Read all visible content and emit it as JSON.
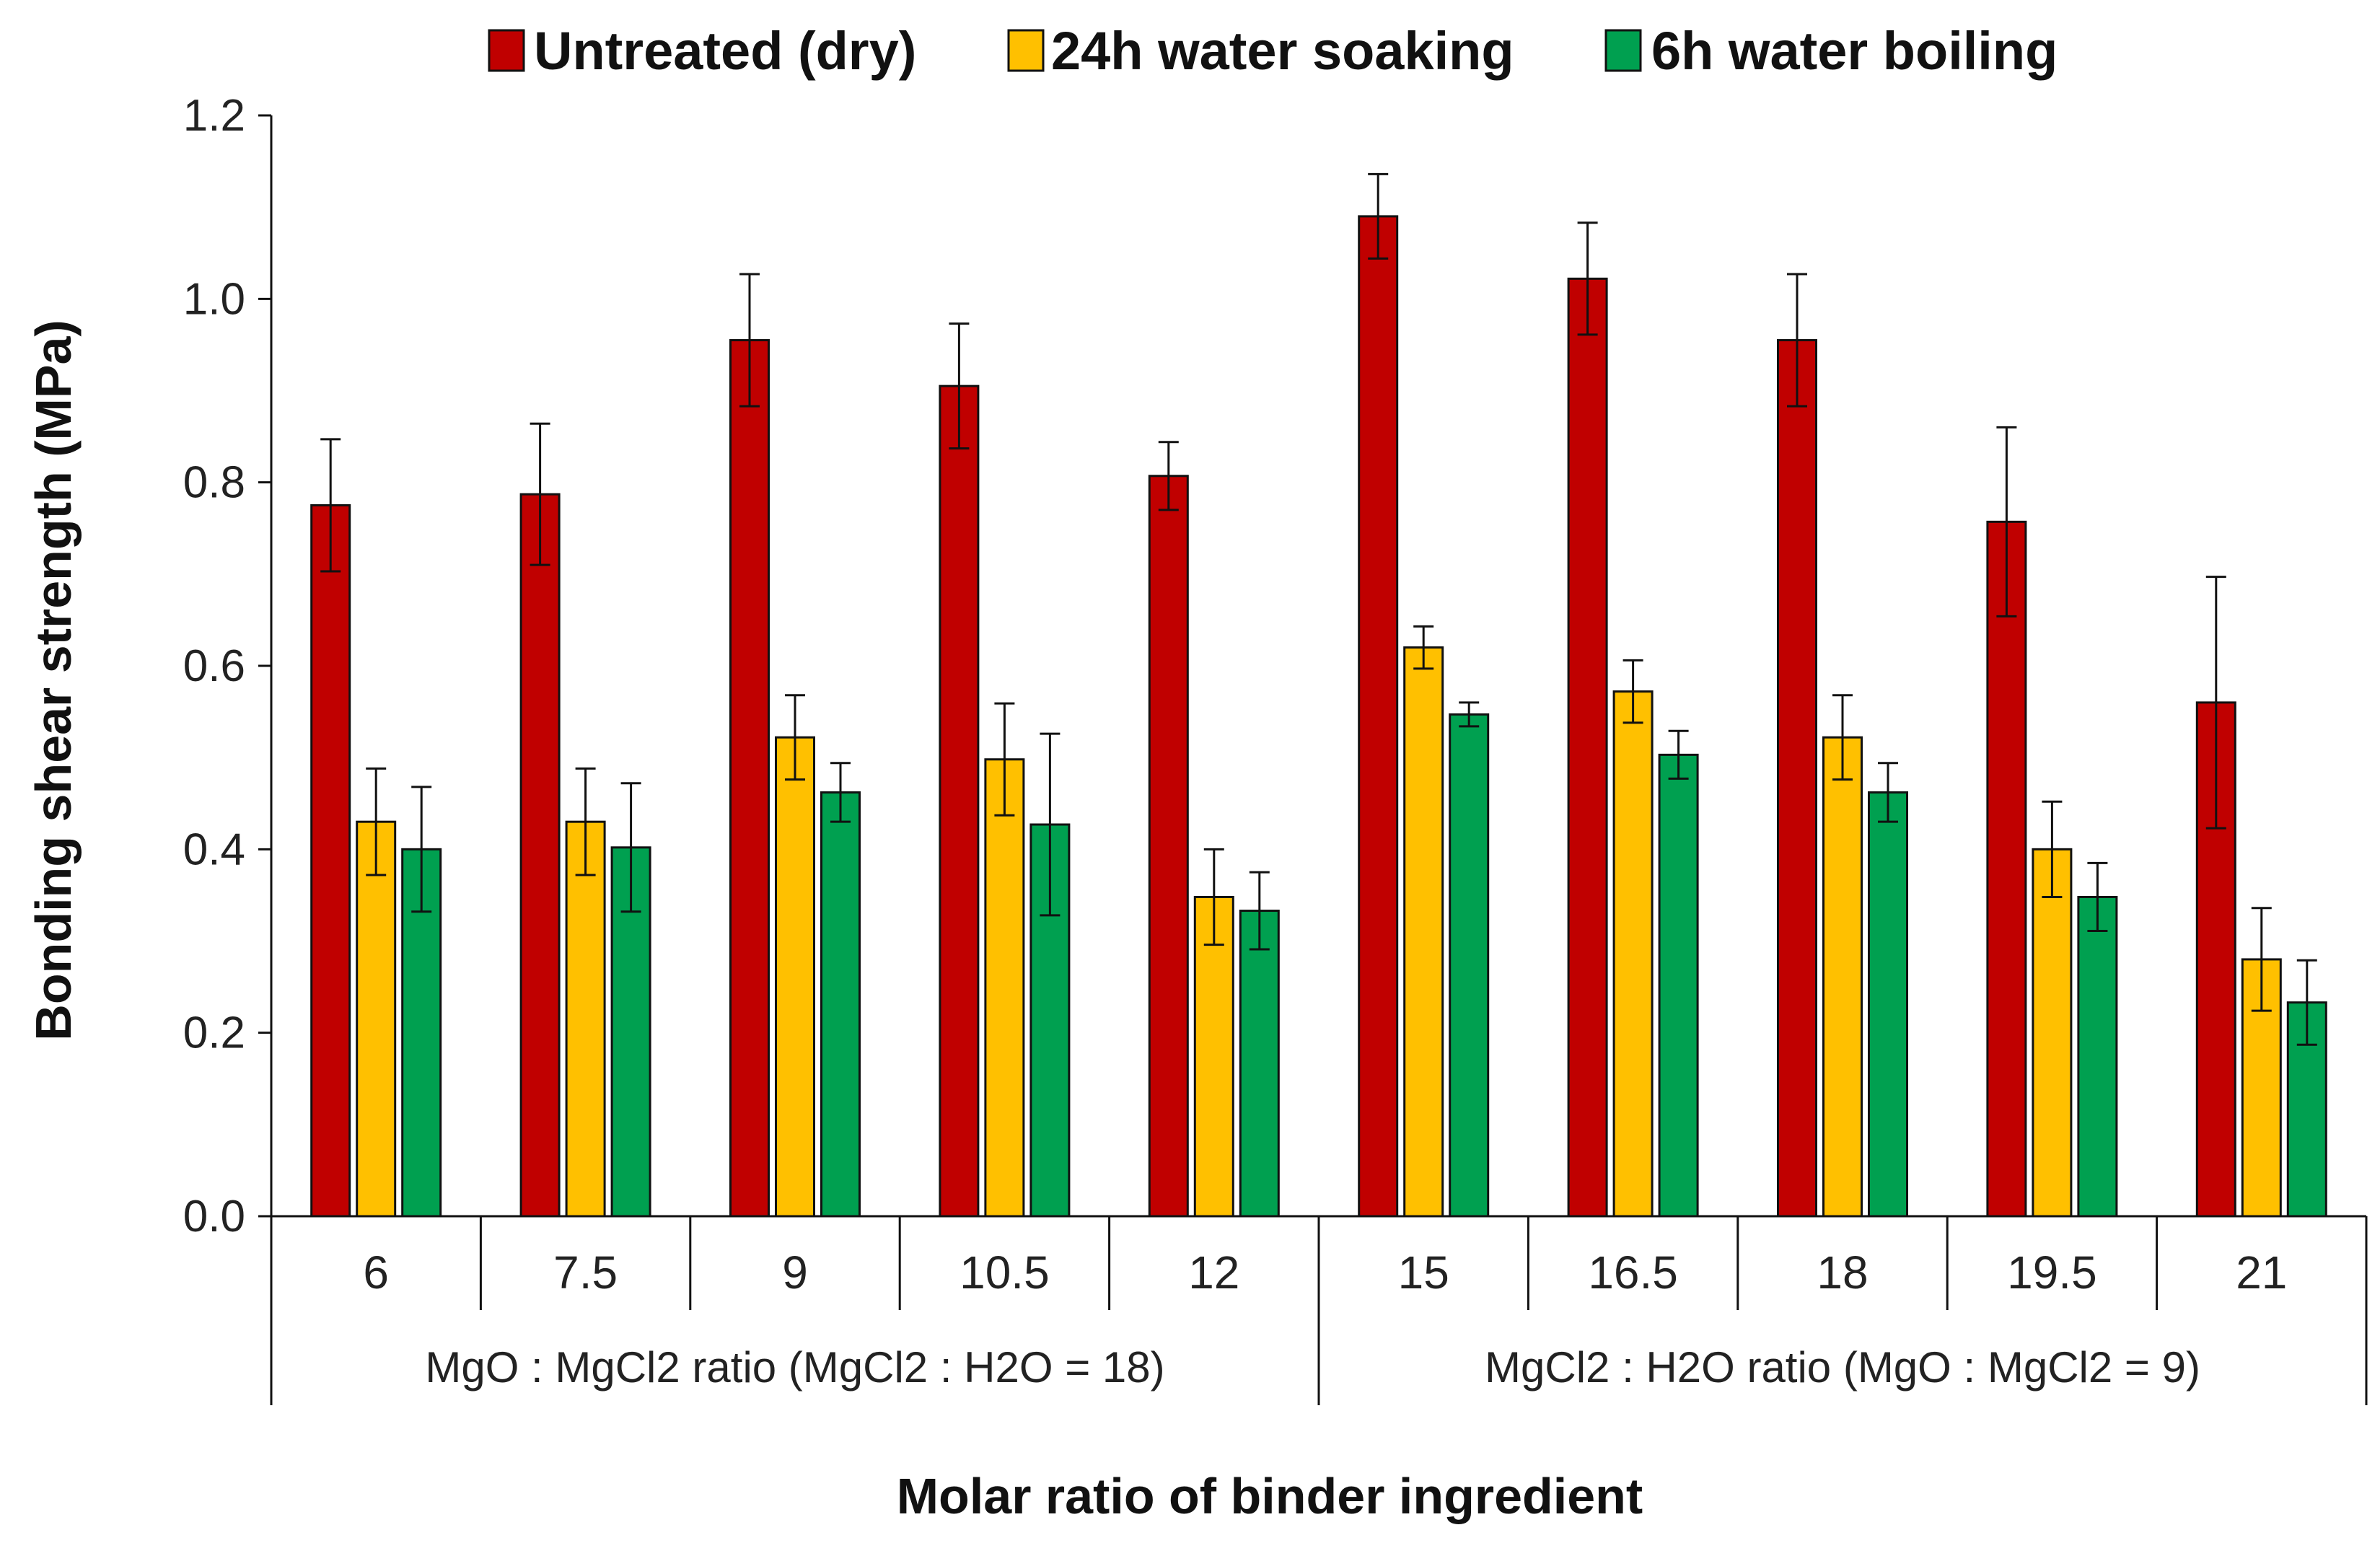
{
  "chart_data": {
    "type": "bar",
    "title": "",
    "ylabel": "Bonding shear strength (MPa)",
    "xlabel": "Molar ratio of binder ingredient",
    "ylim": [
      0,
      1.2
    ],
    "yticks": [
      "0.0",
      "0.2",
      "0.4",
      "0.6",
      "0.8",
      "1.0",
      "1.2"
    ],
    "ytick_values": [
      0,
      0.2,
      0.4,
      0.6,
      0.8,
      1.0,
      1.2
    ],
    "categories": [
      "6",
      "7.5",
      "9",
      "10.5",
      "12",
      "15",
      "16.5",
      "18",
      "19.5",
      "21"
    ],
    "groups": [
      {
        "label": "MgO : MgCl2 ratio (MgCl2 : H2O = 18)",
        "categories": [
          "6",
          "7.5",
          "9",
          "10.5",
          "12"
        ]
      },
      {
        "label": "MgCl2 : H2O ratio (MgO : MgCl2 = 9)",
        "categories": [
          "15",
          "16.5",
          "18",
          "19.5",
          "21"
        ]
      }
    ],
    "legend_position": "top",
    "grid": false,
    "series": [
      {
        "name": "Untreated (dry)",
        "color": "#c00000",
        "values": [
          0.775,
          0.787,
          0.955,
          0.905,
          0.807,
          1.09,
          1.022,
          0.955,
          0.757,
          0.56
        ],
        "errors": [
          0.072,
          0.077,
          0.072,
          0.068,
          0.037,
          0.046,
          0.061,
          0.072,
          0.103,
          0.137
        ]
      },
      {
        "name": "24h water soaking",
        "color": "#ffc000",
        "values": [
          0.43,
          0.43,
          0.522,
          0.498,
          0.348,
          0.62,
          0.572,
          0.522,
          0.4,
          0.28
        ],
        "errors": [
          0.058,
          0.058,
          0.046,
          0.061,
          0.052,
          0.023,
          0.034,
          0.046,
          0.052,
          0.056
        ]
      },
      {
        "name": "6h water boiling",
        "color": "#00a050",
        "values": [
          0.4,
          0.402,
          0.462,
          0.427,
          0.333,
          0.547,
          0.503,
          0.462,
          0.348,
          0.233
        ],
        "errors": [
          0.068,
          0.07,
          0.032,
          0.099,
          0.042,
          0.013,
          0.026,
          0.032,
          0.037,
          0.046
        ]
      }
    ]
  }
}
